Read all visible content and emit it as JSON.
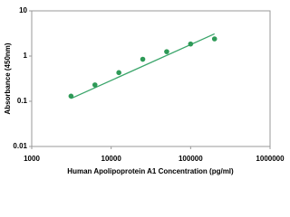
{
  "chart_data": {
    "type": "scatter",
    "x_label": "Human Apolipoprotein A1 Concentration (pg/ml)",
    "y_label": "Absorbance (450nm)",
    "x": [
      3125,
      6250,
      12500,
      25000,
      50000,
      100000,
      200000
    ],
    "values": [
      0.13,
      0.23,
      0.43,
      0.85,
      1.25,
      1.85,
      2.4
    ],
    "color": "#2e9a57",
    "fit": {
      "x": [
        3125,
        200000
      ],
      "values": [
        0.115,
        3.1
      ],
      "color": "#3aa56a"
    },
    "xlim": [
      1000,
      1000000
    ],
    "xticks": [
      1000,
      10000,
      100000,
      1000000
    ],
    "ylim": [
      0.01,
      10
    ],
    "yticks": [
      0.01,
      0.1,
      1,
      10
    ],
    "xscale": "log",
    "yscale": "log"
  }
}
